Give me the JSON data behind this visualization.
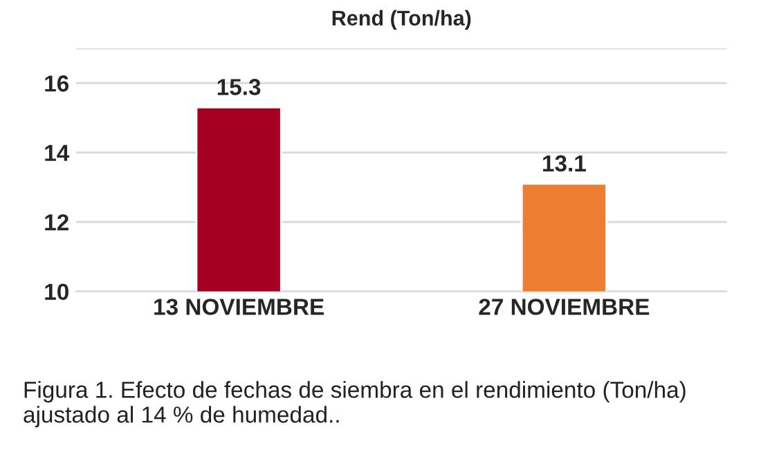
{
  "chart_data": {
    "type": "bar",
    "title": "Rend (Ton/ha)",
    "categories": [
      "13 NOVIEMBRE",
      "27 NOVIEMBRE"
    ],
    "values": [
      15.3,
      13.1
    ],
    "colors": [
      "#a50021",
      "#ed7d31"
    ],
    "ylim": [
      10,
      17
    ],
    "yticks": [
      10,
      12,
      14,
      16,
      {
        "value": 17,
        "label": null
      }
    ],
    "grid": "y",
    "data_labels": true,
    "legend": false,
    "annotations": [
      "Figura 1. Efecto de fechas de siembra en el rendimiento (Ton/ha) ajustado al 14 % de humedad.."
    ]
  }
}
